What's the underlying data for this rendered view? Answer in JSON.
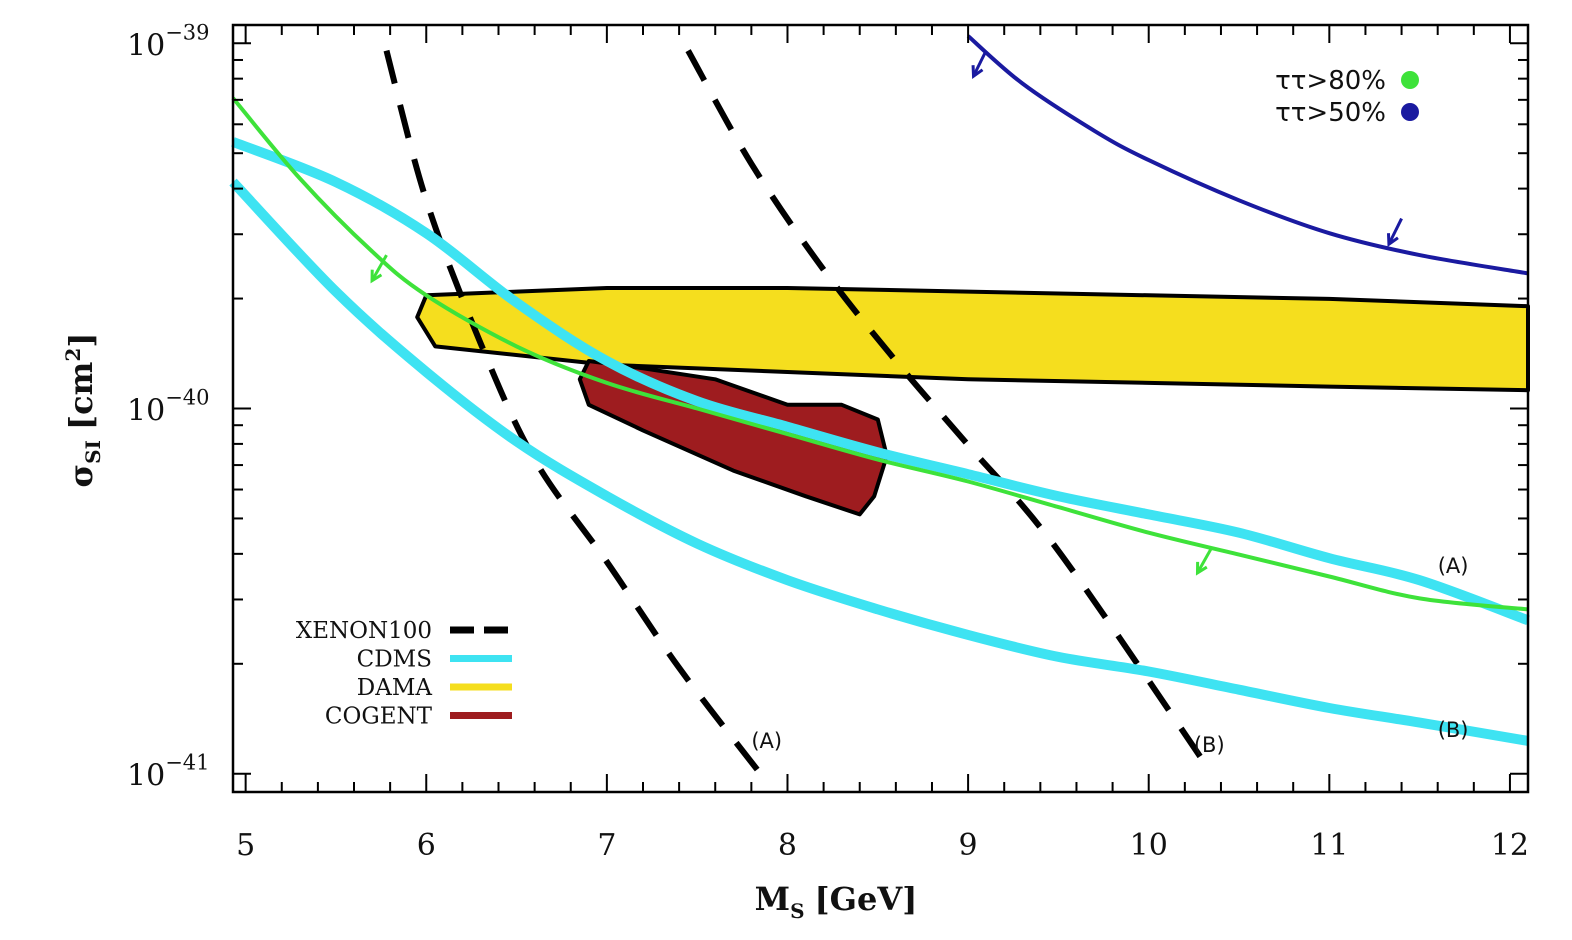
{
  "chart_data": {
    "type": "line",
    "title": "",
    "xlabel": "M",
    "xlabel_sub": "S",
    "xlabel_unit": "[GeV]",
    "ylabel": "σ",
    "ylabel_sub": "SI",
    "ylabel_unit_open": "[cm",
    "ylabel_unit_sup": "2",
    "ylabel_unit_close": "]",
    "xlim": [
      4.93,
      12.1
    ],
    "ylim_log10": [
      -41.05,
      -38.95
    ],
    "y_scale": "log",
    "x_ticks": [
      5,
      6,
      7,
      8,
      9,
      10,
      11,
      12
    ],
    "x_tick_labels": [
      "5",
      "6",
      "7",
      "8",
      "9",
      "10",
      "11",
      "12"
    ],
    "y_ticks_log10": [
      -39,
      -40,
      -41
    ],
    "y_tick_base": "10",
    "y_tick_exps": [
      "−39",
      "−40",
      "−41"
    ],
    "legend_bottom_left": [
      {
        "label": "XENON100",
        "color": "#000000",
        "style": "dashed"
      },
      {
        "label": "CDMS",
        "color": "#3ee3f2",
        "style": "solid"
      },
      {
        "label": "DAMA",
        "color": "#f5de1e",
        "style": "solid"
      },
      {
        "label": "COGENT",
        "color": "#9e1c1f",
        "style": "solid"
      }
    ],
    "legend_top_right": [
      {
        "label": "ττ>80%",
        "color": "#3ee23a"
      },
      {
        "label": "ττ>50%",
        "color": "#1a1aa0"
      }
    ],
    "annotations": [
      {
        "text": "(A)",
        "x": 7.8,
        "y_log10": -40.93
      },
      {
        "text": "(B)",
        "x": 10.25,
        "y_log10": -40.94
      },
      {
        "text": "(A)",
        "x": 11.6,
        "y_log10": -40.45
      },
      {
        "text": "(B)",
        "x": 11.6,
        "y_log10": -40.9
      }
    ],
    "series": [
      {
        "name": "XENON100 (A)",
        "color": "#000000",
        "style": "dashed",
        "x": [
          5.78,
          6.0,
          6.3,
          6.6,
          7.0,
          7.4,
          7.85
        ],
        "y_log10": [
          -39.02,
          -39.43,
          -39.82,
          -40.14,
          -40.42,
          -40.71,
          -41.0
        ]
      },
      {
        "name": "XENON100 (B)",
        "color": "#000000",
        "style": "dashed",
        "x": [
          7.45,
          7.8,
          8.2,
          8.6,
          9.0,
          9.5,
          10.35
        ],
        "y_log10": [
          -39.02,
          -39.33,
          -39.62,
          -39.87,
          -40.1,
          -40.39,
          -41.0
        ]
      },
      {
        "name": "CDMS (A)",
        "color": "#3ee3f2",
        "style": "solid",
        "x": [
          4.93,
          5.5,
          6.0,
          6.5,
          7.0,
          7.5,
          8.0,
          8.5,
          9.0,
          9.5,
          10.0,
          10.5,
          11.0,
          11.5,
          12.1
        ],
        "y_log10": [
          -39.27,
          -39.38,
          -39.52,
          -39.71,
          -39.87,
          -39.98,
          -40.05,
          -40.12,
          -40.18,
          -40.24,
          -40.29,
          -40.34,
          -40.41,
          -40.47,
          -40.58
        ]
      },
      {
        "name": "CDMS (B)",
        "color": "#3ee3f2",
        "style": "solid",
        "x": [
          4.93,
          5.5,
          6.0,
          6.5,
          7.0,
          7.5,
          8.0,
          8.5,
          9.0,
          9.5,
          10.0,
          10.5,
          11.0,
          11.5,
          12.1
        ],
        "y_log10": [
          -39.38,
          -39.68,
          -39.9,
          -40.09,
          -40.24,
          -40.37,
          -40.47,
          -40.55,
          -40.62,
          -40.68,
          -40.72,
          -40.77,
          -40.82,
          -40.86,
          -40.91
        ]
      },
      {
        "name": "ττ>80%",
        "color": "#3ee23a",
        "style": "solid",
        "x": [
          4.93,
          5.3,
          5.7,
          6.0,
          6.5,
          7.0,
          7.5,
          8.0,
          8.5,
          9.0,
          9.5,
          10.0,
          10.5,
          11.0,
          11.5,
          12.1
        ],
        "y_log10": [
          -39.15,
          -39.37,
          -39.57,
          -39.69,
          -39.83,
          -39.93,
          -40.0,
          -40.07,
          -40.14,
          -40.2,
          -40.27,
          -40.34,
          -40.4,
          -40.46,
          -40.52,
          -40.55
        ]
      },
      {
        "name": "ττ>50%",
        "color": "#1a1aa0",
        "style": "solid",
        "x": [
          9.0,
          9.3,
          9.7,
          10.0,
          10.5,
          11.0,
          11.5,
          12.1
        ],
        "y_log10": [
          -38.98,
          -39.11,
          -39.24,
          -39.32,
          -39.43,
          -39.52,
          -39.58,
          -39.63
        ]
      }
    ],
    "regions": [
      {
        "name": "DAMA",
        "fill": "#f5de1e",
        "x": [
          6.0,
          6.5,
          7.0,
          8.0,
          9.0,
          10.0,
          11.0,
          12.1,
          12.1,
          11.0,
          10.0,
          9.0,
          8.0,
          7.0,
          6.05,
          5.95,
          6.0
        ],
        "y_log10": [
          -39.69,
          -39.68,
          -39.67,
          -39.67,
          -39.68,
          -39.69,
          -39.7,
          -39.72,
          -39.95,
          -39.94,
          -39.93,
          -39.92,
          -39.9,
          -39.88,
          -39.83,
          -39.75,
          -39.69
        ]
      },
      {
        "name": "COGENT",
        "fill": "#9e1c1f",
        "x": [
          6.9,
          7.2,
          7.6,
          8.0,
          8.3,
          8.5,
          8.55,
          8.48,
          8.4,
          8.1,
          7.7,
          7.2,
          6.9,
          6.85,
          6.9
        ],
        "y_log10": [
          -39.87,
          -39.89,
          -39.92,
          -39.99,
          -39.99,
          -40.03,
          -40.13,
          -40.24,
          -40.29,
          -40.24,
          -40.17,
          -40.06,
          -39.99,
          -39.92,
          -39.87
        ]
      }
    ],
    "arrows": [
      {
        "series": "ττ>80%",
        "color": "#3ee23a",
        "x": 5.78,
        "y_log10": -39.58,
        "dx": -0.08,
        "dy": -0.07
      },
      {
        "series": "ττ>80%",
        "color": "#3ee23a",
        "x": 10.35,
        "y_log10": -40.38,
        "dx": -0.08,
        "dy": -0.07
      },
      {
        "series": "ττ>50%",
        "color": "#1a1aa0",
        "x": 9.1,
        "y_log10": -39.02,
        "dx": -0.07,
        "dy": -0.07
      },
      {
        "series": "ττ>50%",
        "color": "#1a1aa0",
        "x": 11.4,
        "y_log10": -39.48,
        "dx": -0.07,
        "dy": -0.07
      }
    ]
  }
}
